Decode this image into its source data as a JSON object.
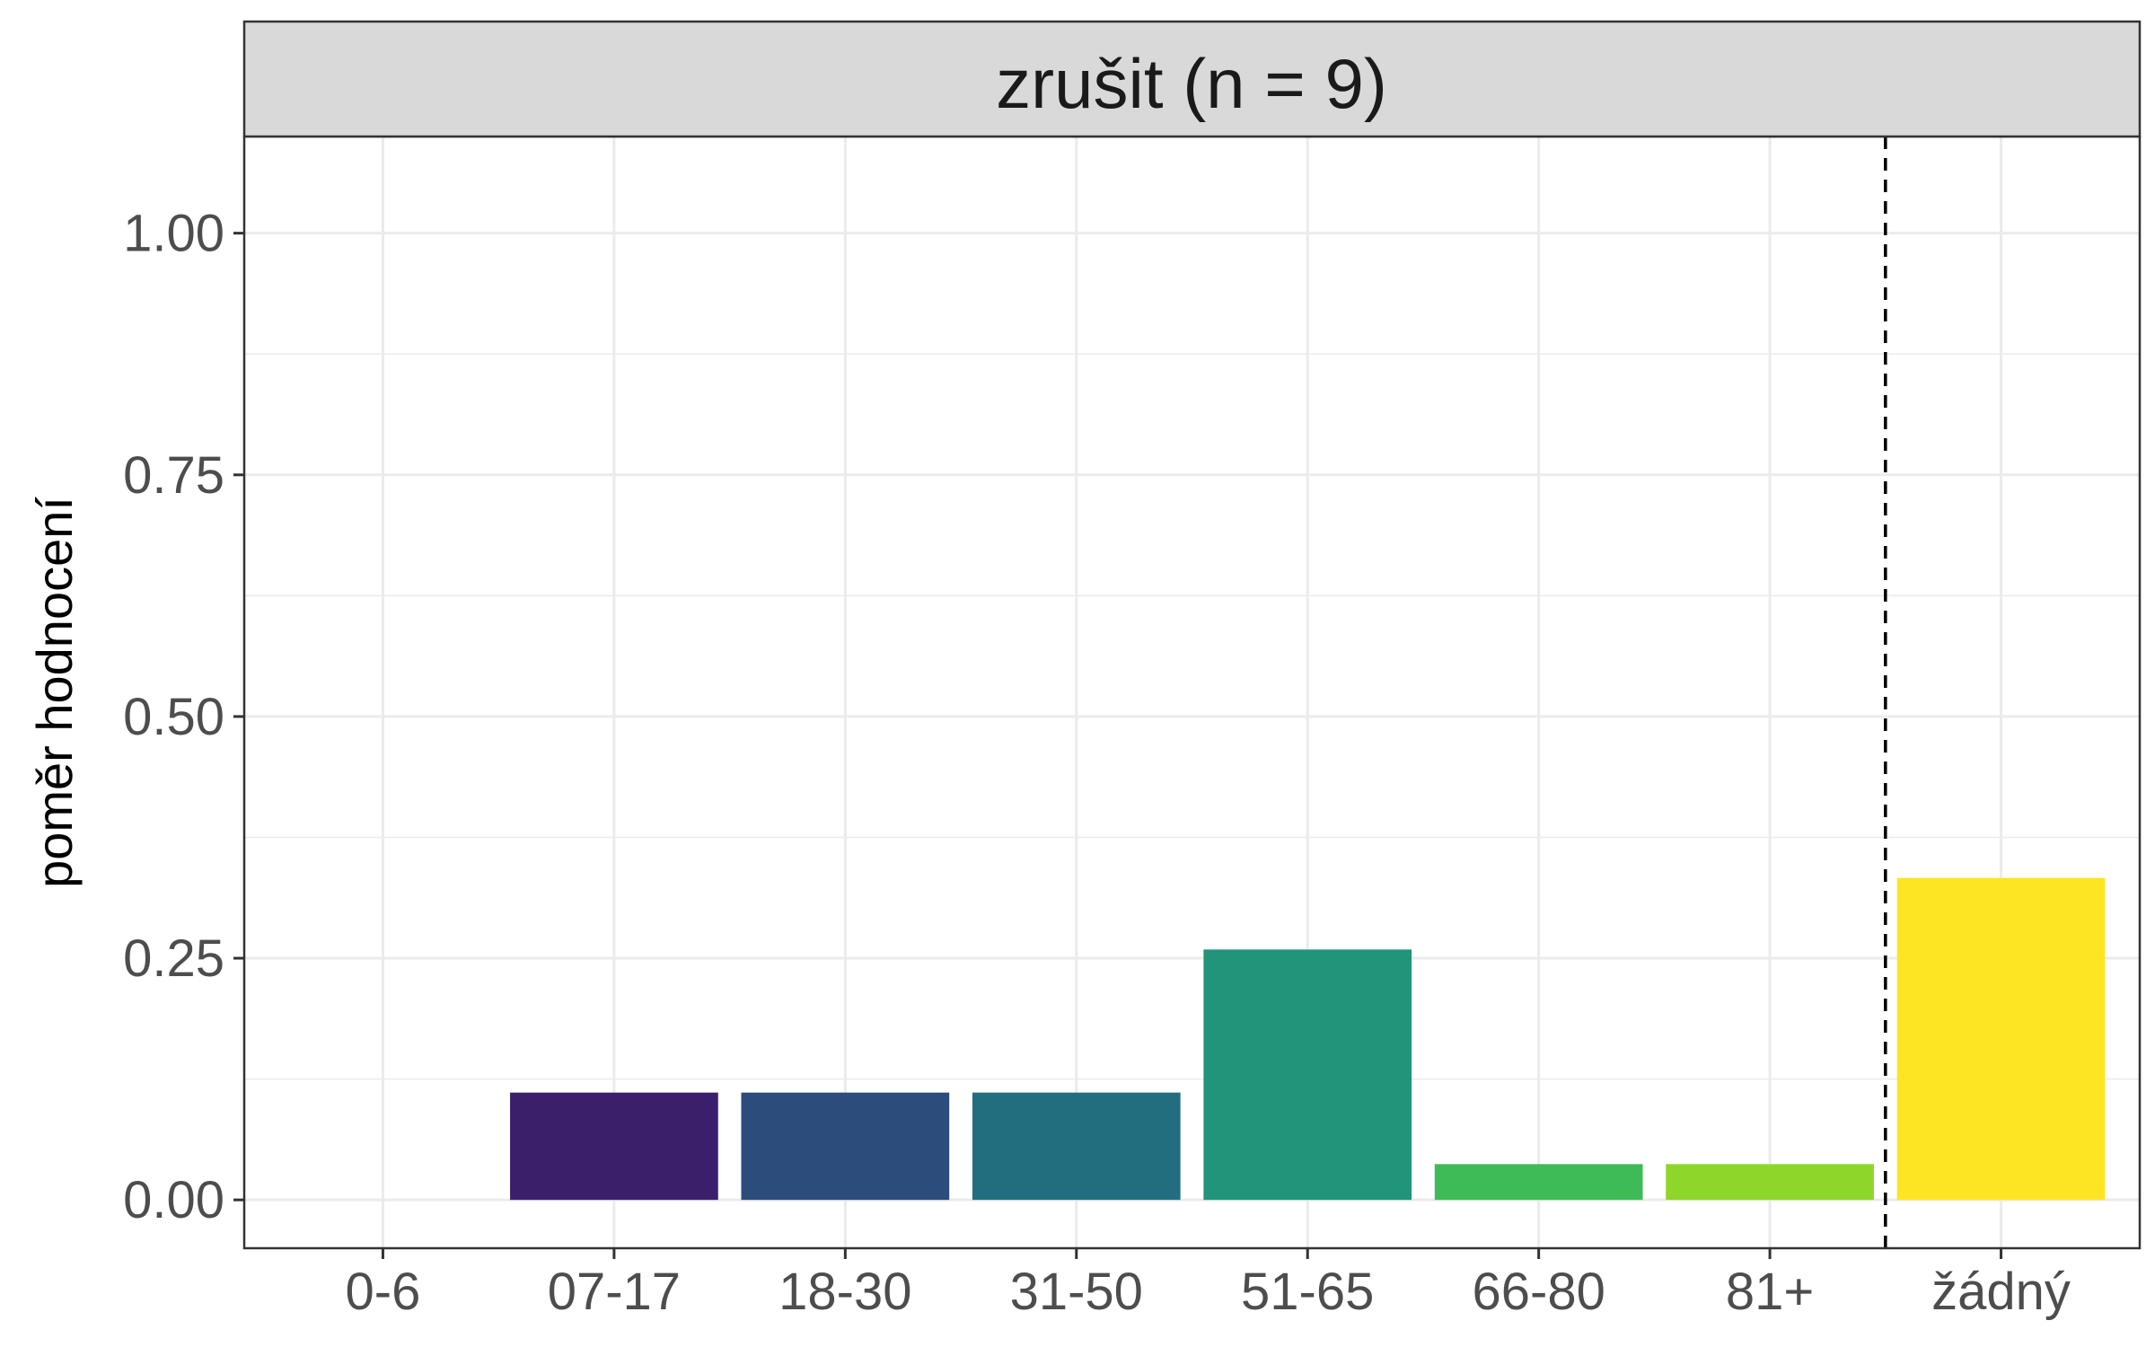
{
  "chart_data": {
    "type": "bar",
    "facet_label": "zrušit (n = 9)",
    "ylabel": "poměr hodnocení",
    "xlabel": "",
    "categories": [
      "0-6",
      "07-17",
      "18-30",
      "31-50",
      "51-65",
      "66-80",
      "81+",
      "žádný"
    ],
    "values": [
      0,
      0.111,
      0.111,
      0.111,
      0.259,
      0.037,
      0.037,
      0.333
    ],
    "colors": [
      "#440154",
      "#3B1F6B",
      "#2C4C7C",
      "#236E7E",
      "#219479",
      "#3EBA57",
      "#8ED62A",
      "#FDE524"
    ],
    "yticks": [
      "0.00",
      "0.25",
      "0.50",
      "0.75",
      "1.00"
    ],
    "ytick_values": [
      0,
      0.25,
      0.5,
      0.75,
      1.0
    ],
    "ylim": [
      -0.05,
      1.1
    ],
    "grid": true,
    "reference_line": {
      "style": "dashed",
      "between_categories": [
        "81+",
        "žádný"
      ]
    }
  }
}
